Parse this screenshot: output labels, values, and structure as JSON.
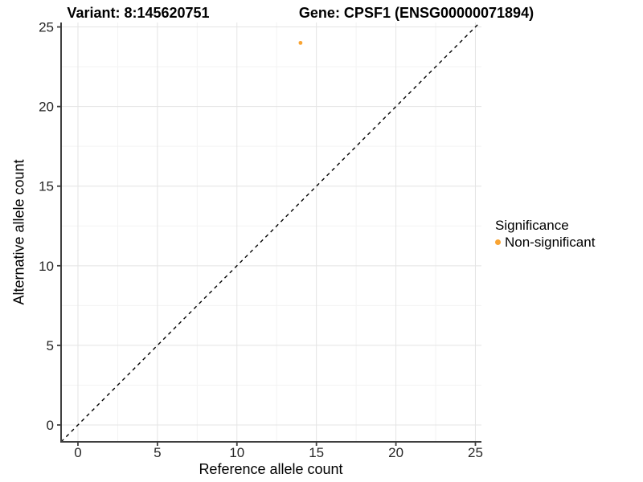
{
  "header": {
    "variant_title": "Variant: 8:145620751",
    "gene_title": "Gene: CPSF1 (ENSG00000071894)"
  },
  "colors": {
    "point": "#F9A432",
    "identity_line": "#000000",
    "grid_major": "#E4E4E4",
    "grid_minor": "#F3F3F3",
    "axis_line": "#3F3F3F",
    "tick_text": "#262626",
    "background": "#FFFFFF"
  },
  "chart_data": {
    "type": "scatter",
    "title": "Variant: 8:145620751 / Gene: CPSF1 (ENSG00000071894)",
    "xlabel": "Reference allele count",
    "ylabel": "Alternative allele count",
    "xlim": [
      -1.06,
      25.38
    ],
    "ylim": [
      -1.06,
      25.28
    ],
    "xticks": [
      0,
      5,
      10,
      15,
      20,
      25
    ],
    "yticks": [
      0,
      5,
      10,
      15,
      20,
      25
    ],
    "minor_ticks_x": [
      2.5,
      7.5,
      12.5,
      17.5,
      22.5
    ],
    "minor_ticks_y": [
      2.5,
      7.5,
      12.5,
      17.5,
      22.5
    ],
    "grid": "major+minor",
    "points": [
      {
        "x": 14,
        "y": 24,
        "series": "Non-significant"
      }
    ],
    "identity_line": {
      "slope": 1,
      "intercept": 0,
      "style": "dashed",
      "color": "#000000"
    },
    "legend": {
      "title": "Significance",
      "position": "right",
      "items": [
        {
          "label": "Non-significant",
          "color": "#F9A432"
        }
      ]
    }
  }
}
